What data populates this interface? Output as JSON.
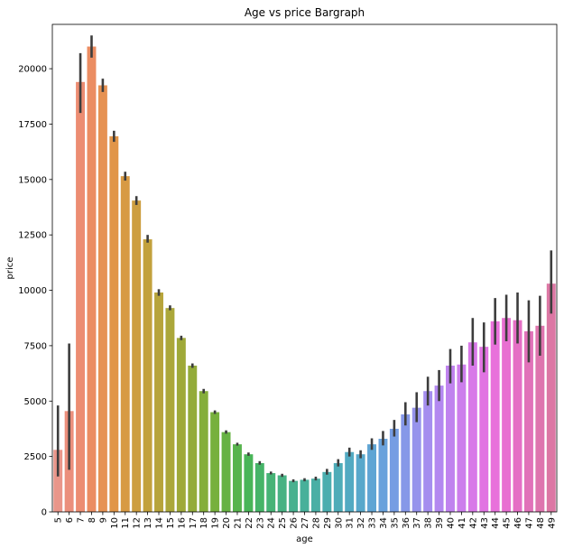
{
  "chart_data": {
    "type": "bar",
    "title": "Age vs price Bargraph",
    "xlabel": "age",
    "ylabel": "price",
    "ylim": [
      0,
      22000
    ],
    "yticks": [
      0,
      2500,
      5000,
      7500,
      10000,
      12500,
      15000,
      17500,
      20000
    ],
    "grid": false,
    "legend": "none",
    "categories": [
      "5",
      "6",
      "7",
      "8",
      "9",
      "10",
      "11",
      "12",
      "13",
      "14",
      "15",
      "16",
      "17",
      "18",
      "19",
      "20",
      "21",
      "22",
      "23",
      "24",
      "25",
      "26",
      "27",
      "28",
      "29",
      "30",
      "31",
      "32",
      "33",
      "34",
      "35",
      "36",
      "37",
      "38",
      "39",
      "40",
      "41",
      "42",
      "43",
      "44",
      "45",
      "46",
      "47",
      "48",
      "49"
    ],
    "values": [
      2800,
      4550,
      19400,
      21000,
      19250,
      16950,
      15150,
      14050,
      12300,
      9900,
      9200,
      7850,
      6600,
      5450,
      4500,
      3600,
      3050,
      2600,
      2200,
      1750,
      1650,
      1400,
      1450,
      1500,
      1800,
      2200,
      2700,
      2600,
      3050,
      3300,
      3750,
      4400,
      4700,
      5450,
      5700,
      6600,
      6650,
      7650,
      7450,
      8600,
      8750,
      8650,
      8150,
      8400,
      10300
    ],
    "error_low": [
      1600,
      1900,
      18000,
      20500,
      18950,
      16700,
      14950,
      13850,
      12150,
      9750,
      9100,
      7750,
      6500,
      5350,
      4420,
      3530,
      2990,
      2530,
      2130,
      1690,
      1580,
      1340,
      1380,
      1420,
      1680,
      2050,
      2500,
      2420,
      2800,
      3000,
      3400,
      3900,
      4050,
      4800,
      5000,
      5800,
      5850,
      6600,
      6300,
      7550,
      7700,
      7600,
      6750,
      7050,
      8950
    ],
    "error_high": [
      4800,
      7600,
      20700,
      21500,
      19550,
      17200,
      15350,
      14250,
      12500,
      10050,
      9320,
      7950,
      6700,
      5550,
      4580,
      3680,
      3120,
      2680,
      2290,
      1820,
      1720,
      1470,
      1520,
      1590,
      1940,
      2380,
      2900,
      2780,
      3320,
      3650,
      4150,
      4950,
      5400,
      6100,
      6400,
      7350,
      7500,
      8750,
      8550,
      9650,
      9800,
      9900,
      9550,
      9750,
      11800
    ],
    "colors": [
      "#e9968a",
      "#eb8f7c",
      "#ec8d72",
      "#eb8d62",
      "#e69253",
      "#e19548",
      "#d79a44",
      "#cd9e40",
      "#c2a13c",
      "#b7a43b",
      "#aba73a",
      "#9fa939",
      "#93ab3a",
      "#85ae3a",
      "#77b03d",
      "#67b244",
      "#57b44d",
      "#49b558",
      "#46b468",
      "#46b376",
      "#47b283",
      "#48b18f",
      "#48b09a",
      "#4aafa5",
      "#4baeaf",
      "#4eacb8",
      "#52aac2",
      "#58a8cb",
      "#5fa5d4",
      "#69a2dc",
      "#769de3",
      "#8698e8",
      "#9693ec",
      "#a58eef",
      "#b388f0",
      "#c083ef",
      "#cc7eec",
      "#d879e8",
      "#e174e2",
      "#e871db",
      "#e86fd1",
      "#e56fc5",
      "#e172b9",
      "#de75ae",
      "#dc77a4"
    ]
  }
}
